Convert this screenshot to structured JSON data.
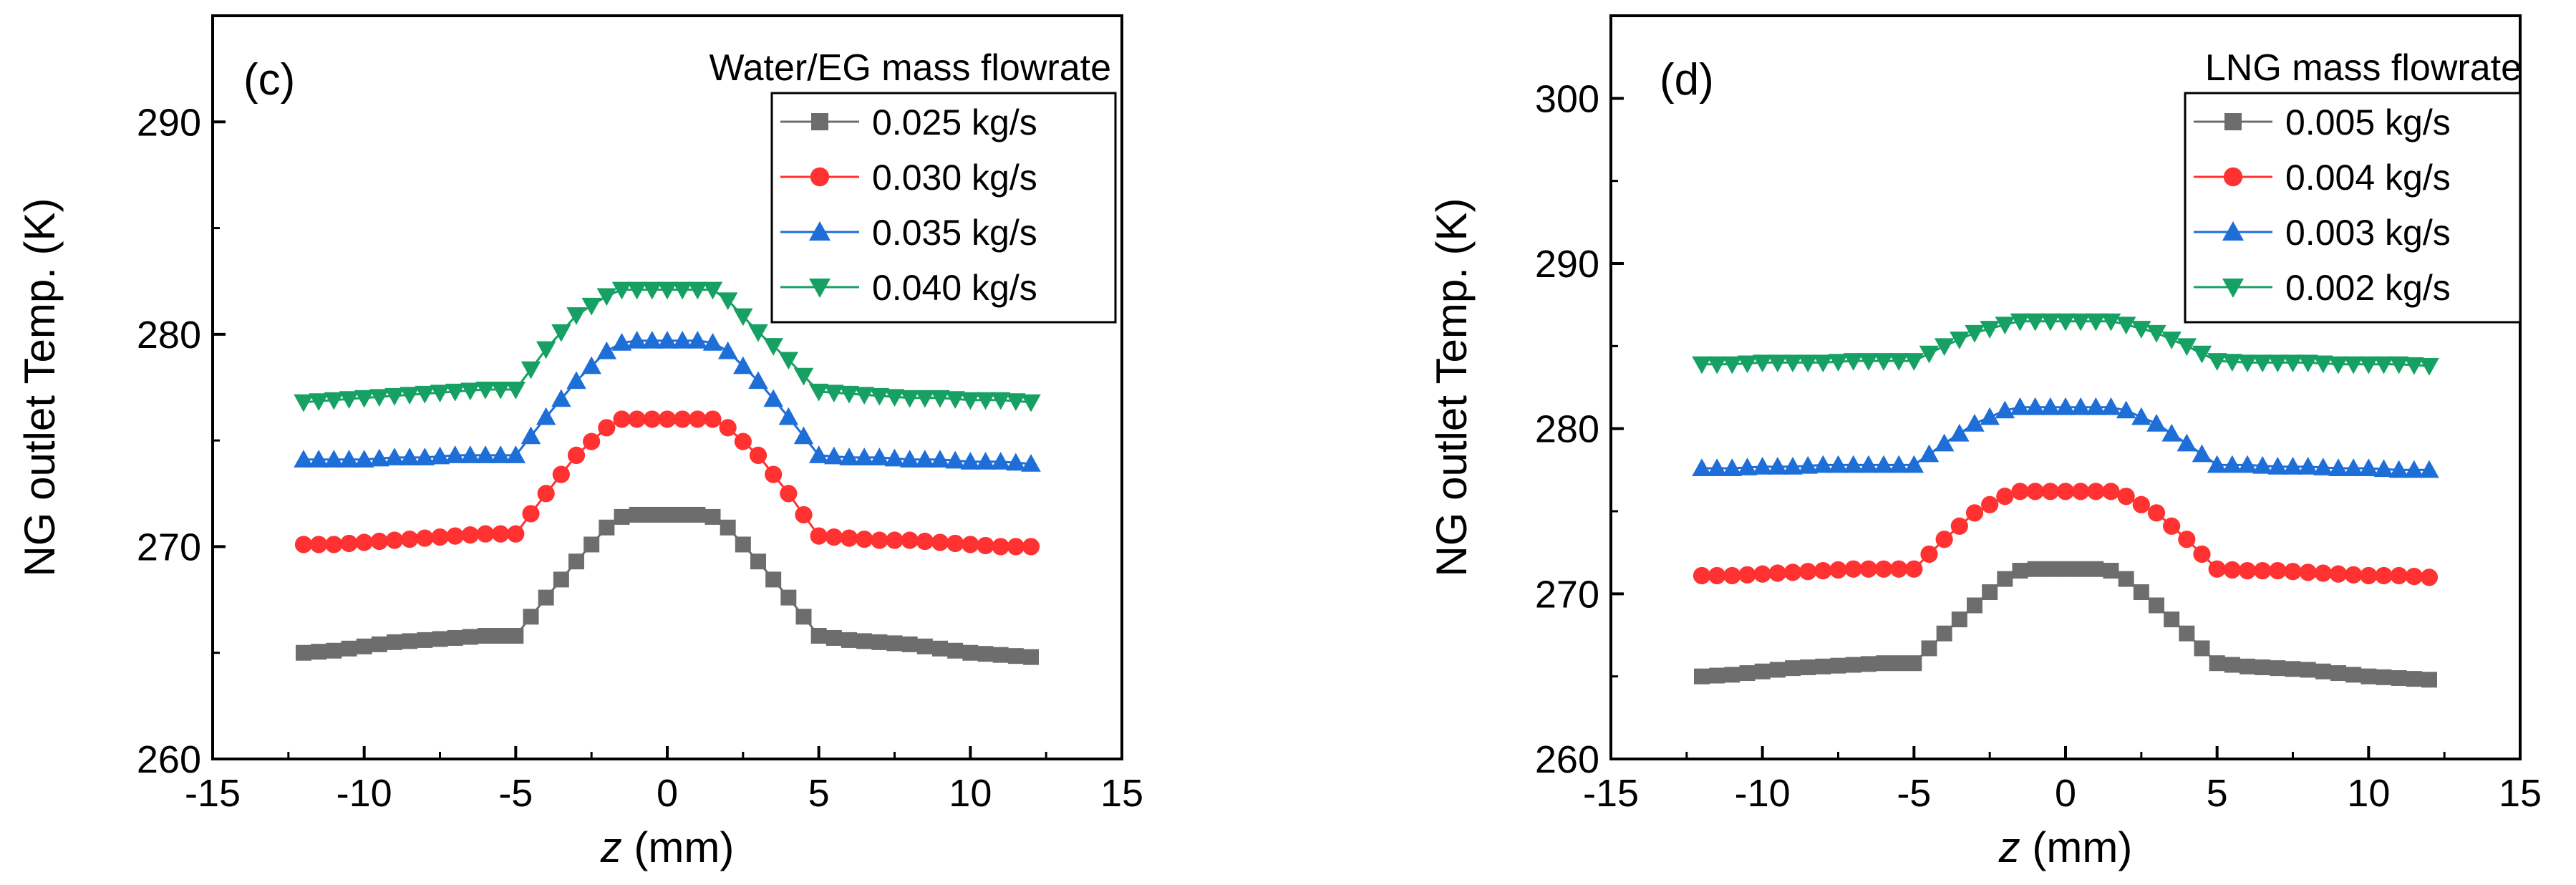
{
  "chart_data": [
    {
      "type": "line",
      "panel_label": "(c)",
      "legend_title": "Water/EG mass flowrate",
      "xlabel_var": "z",
      "xlabel_unit": " (mm)",
      "ylabel": "NG outlet Temp. (K)",
      "xlim": [
        -15,
        15
      ],
      "ylim": [
        260,
        295
      ],
      "xticks": [
        -15,
        -10,
        -5,
        0,
        5,
        10,
        15
      ],
      "yticks": [
        260,
        270,
        280,
        290
      ],
      "x": [
        -12,
        -11,
        -10,
        -9,
        -8,
        -7,
        -6,
        -5,
        -4,
        -3,
        -2,
        -1.5,
        -1,
        -0.5,
        0,
        0.5,
        1,
        1.5,
        2,
        3,
        4,
        5,
        6,
        7,
        8,
        9,
        10,
        11,
        12
      ],
      "series": [
        {
          "name": "0.025 kg/s",
          "marker": "square",
          "color": "#6d6d6d",
          "values": [
            265.0,
            265.1,
            265.3,
            265.5,
            265.6,
            265.7,
            265.8,
            265.8,
            267.6,
            269.3,
            270.9,
            271.4,
            271.5,
            271.5,
            271.5,
            271.5,
            271.5,
            271.4,
            270.9,
            269.3,
            267.6,
            265.8,
            265.6,
            265.5,
            265.4,
            265.2,
            265.0,
            264.9,
            264.8
          ]
        },
        {
          "name": "0.030 kg/s",
          "marker": "circle",
          "color": "#ff3131",
          "values": [
            270.1,
            270.1,
            270.2,
            270.3,
            270.4,
            270.5,
            270.6,
            270.6,
            272.5,
            274.3,
            275.6,
            276.0,
            276.0,
            276.0,
            276.0,
            276.0,
            276.0,
            276.0,
            275.6,
            274.3,
            272.5,
            270.5,
            270.4,
            270.3,
            270.3,
            270.2,
            270.1,
            270.0,
            270.0
          ]
        },
        {
          "name": "0.035 kg/s",
          "marker": "triangle-up",
          "color": "#1e6ed8",
          "values": [
            274.1,
            274.1,
            274.1,
            274.2,
            274.2,
            274.3,
            274.3,
            274.3,
            276.1,
            277.8,
            279.2,
            279.6,
            279.7,
            279.7,
            279.7,
            279.7,
            279.7,
            279.6,
            279.2,
            277.8,
            276.1,
            274.3,
            274.2,
            274.2,
            274.1,
            274.1,
            274.0,
            274.0,
            273.9
          ]
        },
        {
          "name": "0.040 kg/s",
          "marker": "triangle-down",
          "color": "#17a063",
          "values": [
            276.8,
            276.9,
            277.0,
            277.1,
            277.2,
            277.3,
            277.4,
            277.4,
            279.3,
            280.9,
            281.8,
            282.1,
            282.1,
            282.1,
            282.1,
            282.1,
            282.1,
            282.1,
            281.6,
            280.1,
            278.8,
            277.3,
            277.2,
            277.1,
            277.0,
            277.0,
            276.9,
            276.9,
            276.8
          ]
        }
      ]
    },
    {
      "type": "line",
      "panel_label": "(d)",
      "legend_title": "LNG mass flowrate",
      "xlabel_var": "z",
      "xlabel_unit": " (mm)",
      "ylabel": "NG outlet Temp. (K)",
      "xlim": [
        -15,
        15
      ],
      "ylim": [
        260,
        305
      ],
      "xticks": [
        -15,
        -10,
        -5,
        0,
        5,
        10,
        15
      ],
      "yticks": [
        260,
        270,
        280,
        290,
        300
      ],
      "x": [
        -12,
        -11,
        -10,
        -9,
        -8,
        -7,
        -6,
        -5,
        -4,
        -3,
        -2,
        -1.5,
        -1,
        -0.5,
        0,
        0.5,
        1,
        1.5,
        2,
        3,
        4,
        5,
        6,
        7,
        8,
        9,
        10,
        11,
        12
      ],
      "series": [
        {
          "name": "0.005 kg/s",
          "marker": "square",
          "color": "#6d6d6d",
          "values": [
            265.0,
            265.1,
            265.3,
            265.5,
            265.6,
            265.7,
            265.8,
            265.8,
            267.6,
            269.3,
            270.9,
            271.4,
            271.5,
            271.5,
            271.5,
            271.5,
            271.5,
            271.4,
            270.9,
            269.3,
            267.6,
            265.8,
            265.6,
            265.5,
            265.4,
            265.2,
            265.0,
            264.9,
            264.8
          ]
        },
        {
          "name": "0.004 kg/s",
          "marker": "circle",
          "color": "#ff3131",
          "values": [
            271.1,
            271.1,
            271.2,
            271.3,
            271.4,
            271.5,
            271.5,
            271.5,
            273.3,
            274.9,
            275.9,
            276.2,
            276.2,
            276.2,
            276.2,
            276.2,
            276.2,
            276.2,
            275.9,
            274.9,
            273.3,
            271.5,
            271.4,
            271.4,
            271.3,
            271.2,
            271.1,
            271.1,
            271.0
          ]
        },
        {
          "name": "0.003 kg/s",
          "marker": "triangle-up",
          "color": "#1e6ed8",
          "values": [
            277.6,
            277.6,
            277.7,
            277.7,
            277.8,
            277.8,
            277.8,
            277.8,
            279.1,
            280.3,
            281.1,
            281.3,
            281.3,
            281.3,
            281.3,
            281.3,
            281.3,
            281.3,
            281.1,
            280.3,
            279.1,
            277.8,
            277.8,
            277.7,
            277.7,
            277.6,
            277.6,
            277.5,
            277.5
          ]
        },
        {
          "name": "0.002 kg/s",
          "marker": "triangle-down",
          "color": "#17a063",
          "values": [
            283.9,
            283.9,
            284.0,
            284.0,
            284.0,
            284.1,
            284.1,
            284.1,
            285.0,
            285.8,
            286.3,
            286.5,
            286.5,
            286.5,
            286.5,
            286.5,
            286.5,
            286.5,
            286.3,
            285.8,
            285.0,
            284.1,
            284.0,
            284.0,
            284.0,
            283.9,
            283.9,
            283.9,
            283.8
          ]
        }
      ]
    }
  ]
}
